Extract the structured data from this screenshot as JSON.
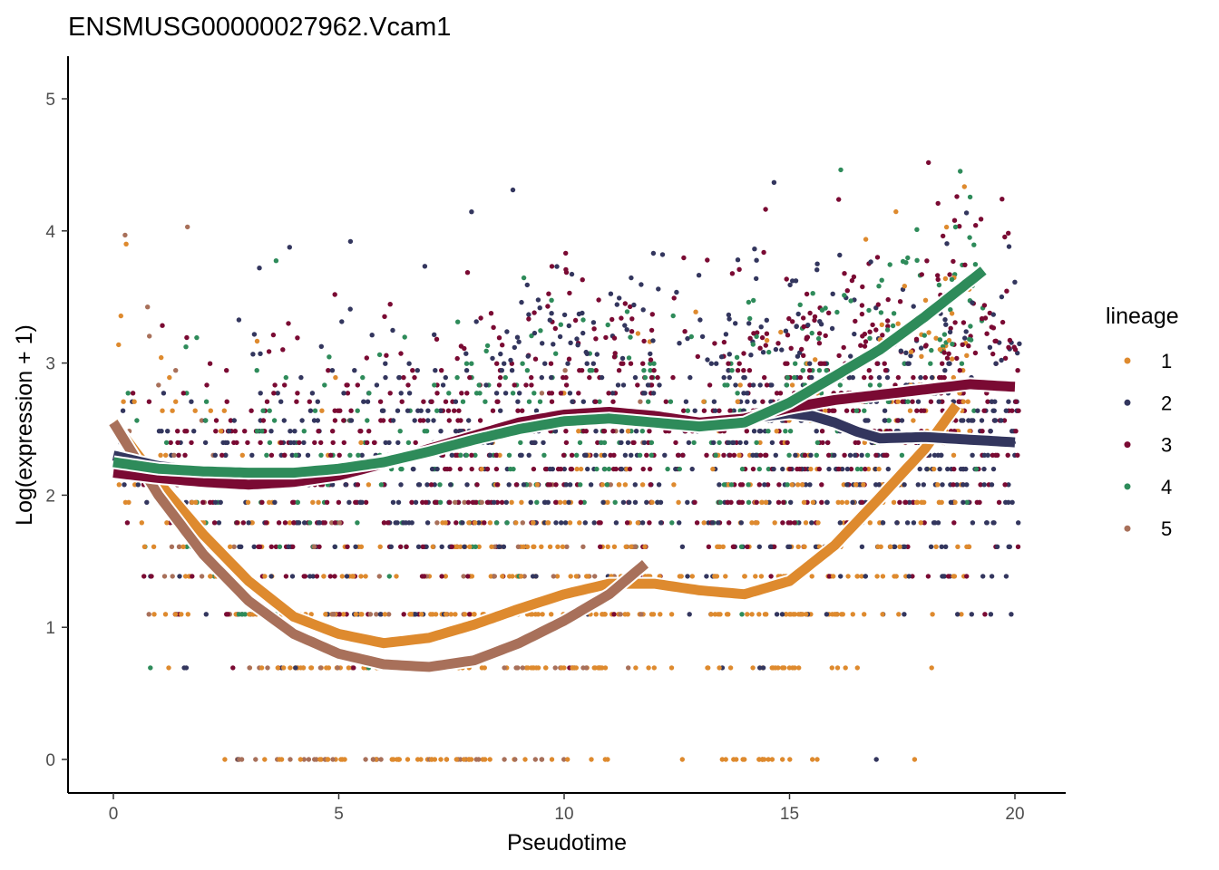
{
  "chart_data": {
    "type": "scatter",
    "title": "ENSMUSG00000027962.Vcam1",
    "xlabel": "Pseudotime",
    "ylabel": "Log(expression + 1)",
    "xlim": [
      -1,
      21
    ],
    "ylim": [
      -0.25,
      5.3
    ],
    "xticks": [
      0,
      5,
      10,
      15,
      20
    ],
    "yticks": [
      0,
      1,
      2,
      3,
      4,
      5
    ],
    "grid": false,
    "legend": {
      "title": "lineage",
      "placement": "right",
      "entries": [
        "1",
        "2",
        "3",
        "4",
        "5"
      ]
    },
    "series": [
      {
        "name": "1",
        "color": "#DE8A2E",
        "point_count": 700,
        "x_range": [
          0,
          19
        ],
        "point_spread": 0.55,
        "smooth": [
          [
            0,
            2.55
          ],
          [
            1,
            2.1
          ],
          [
            2,
            1.7
          ],
          [
            3,
            1.35
          ],
          [
            4,
            1.08
          ],
          [
            5,
            0.95
          ],
          [
            6,
            0.88
          ],
          [
            7,
            0.92
          ],
          [
            8,
            1.02
          ],
          [
            9,
            1.14
          ],
          [
            10,
            1.25
          ],
          [
            11,
            1.33
          ],
          [
            12,
            1.33
          ],
          [
            13,
            1.28
          ],
          [
            14,
            1.25
          ],
          [
            15,
            1.35
          ],
          [
            16,
            1.62
          ],
          [
            17,
            1.98
          ],
          [
            18,
            2.35
          ],
          [
            18.7,
            2.68
          ]
        ]
      },
      {
        "name": "2",
        "color": "#33365E",
        "point_count": 900,
        "x_range": [
          0,
          20.1
        ],
        "point_spread": 0.5,
        "smooth": [
          [
            0,
            2.3
          ],
          [
            1,
            2.22
          ],
          [
            2,
            2.18
          ],
          [
            3,
            2.16
          ],
          [
            4,
            2.17
          ],
          [
            5,
            2.2
          ],
          [
            6,
            2.26
          ],
          [
            7,
            2.34
          ],
          [
            8,
            2.43
          ],
          [
            9,
            2.52
          ],
          [
            10,
            2.57
          ],
          [
            11,
            2.6
          ],
          [
            12,
            2.57
          ],
          [
            13,
            2.54
          ],
          [
            14,
            2.58
          ],
          [
            15,
            2.62
          ],
          [
            15.5,
            2.6
          ],
          [
            16,
            2.55
          ],
          [
            16.5,
            2.48
          ],
          [
            17,
            2.43
          ],
          [
            18,
            2.44
          ],
          [
            19,
            2.42
          ],
          [
            20,
            2.4
          ]
        ]
      },
      {
        "name": "3",
        "color": "#7A0A33",
        "point_count": 900,
        "x_range": [
          0,
          20.1
        ],
        "point_spread": 0.45,
        "smooth": [
          [
            0,
            2.17
          ],
          [
            1,
            2.13
          ],
          [
            2,
            2.1
          ],
          [
            3,
            2.08
          ],
          [
            4,
            2.1
          ],
          [
            5,
            2.15
          ],
          [
            6,
            2.24
          ],
          [
            7,
            2.35
          ],
          [
            8,
            2.45
          ],
          [
            9,
            2.55
          ],
          [
            10,
            2.61
          ],
          [
            11,
            2.63
          ],
          [
            12,
            2.6
          ],
          [
            13,
            2.55
          ],
          [
            14,
            2.58
          ],
          [
            15,
            2.66
          ],
          [
            16,
            2.72
          ],
          [
            17,
            2.76
          ],
          [
            18,
            2.8
          ],
          [
            19,
            2.84
          ],
          [
            20,
            2.82
          ]
        ]
      },
      {
        "name": "4",
        "color": "#2E8B5A",
        "point_count": 380,
        "x_range": [
          0,
          19.3
        ],
        "point_spread": 0.4,
        "smooth": [
          [
            0,
            2.25
          ],
          [
            1,
            2.2
          ],
          [
            2,
            2.18
          ],
          [
            3,
            2.17
          ],
          [
            4,
            2.17
          ],
          [
            5,
            2.2
          ],
          [
            6,
            2.25
          ],
          [
            7,
            2.33
          ],
          [
            8,
            2.42
          ],
          [
            9,
            2.5
          ],
          [
            10,
            2.56
          ],
          [
            11,
            2.58
          ],
          [
            12,
            2.55
          ],
          [
            13,
            2.52
          ],
          [
            14,
            2.55
          ],
          [
            15,
            2.7
          ],
          [
            16,
            2.9
          ],
          [
            17,
            3.1
          ],
          [
            18,
            3.35
          ],
          [
            19.3,
            3.7
          ]
        ]
      },
      {
        "name": "5",
        "color": "#A8705A",
        "point_count": 140,
        "x_range": [
          0,
          11.8
        ],
        "point_spread": 0.55,
        "smooth": [
          [
            0,
            2.55
          ],
          [
            1,
            2.0
          ],
          [
            2,
            1.55
          ],
          [
            3,
            1.2
          ],
          [
            4,
            0.95
          ],
          [
            5,
            0.8
          ],
          [
            6,
            0.72
          ],
          [
            7,
            0.7
          ],
          [
            8,
            0.75
          ],
          [
            9,
            0.88
          ],
          [
            10,
            1.05
          ],
          [
            11,
            1.25
          ],
          [
            11.8,
            1.48
          ]
        ]
      }
    ]
  }
}
